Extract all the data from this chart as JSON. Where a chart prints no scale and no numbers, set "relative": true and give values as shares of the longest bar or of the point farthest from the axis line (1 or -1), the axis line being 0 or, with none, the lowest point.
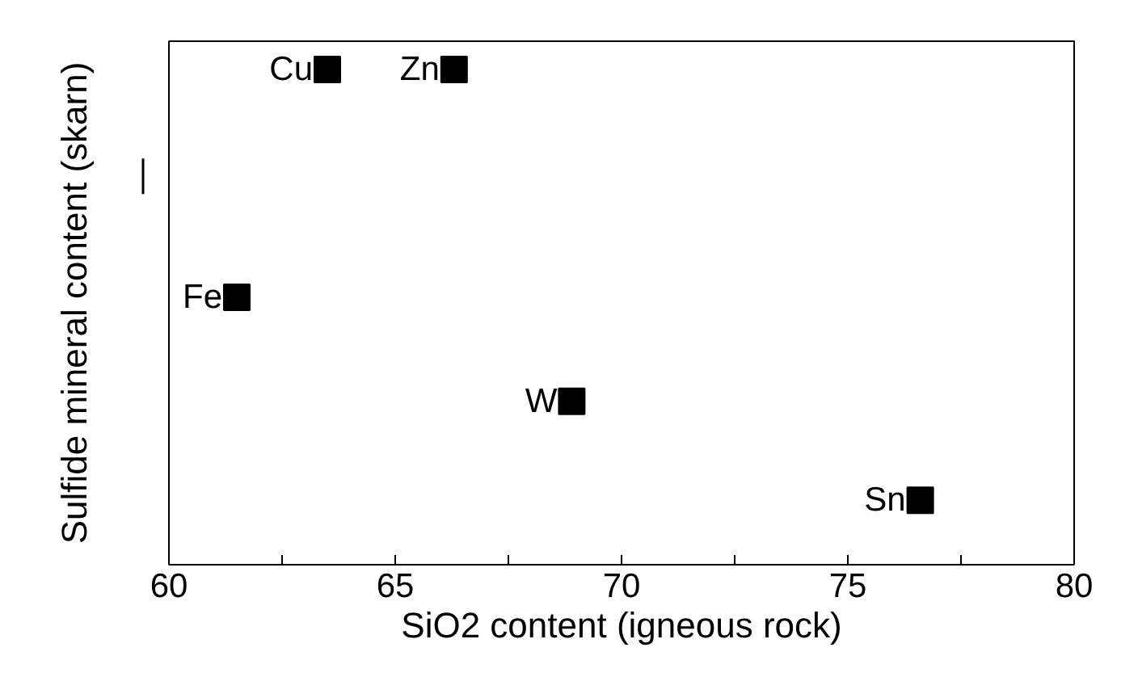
{
  "chart_data": {
    "type": "scatter",
    "xlabel": "SiO2 content (igneous rock)",
    "ylabel": "Sulfide mineral content (skarn)",
    "x": [
      63.5,
      66.3,
      61.5,
      68.9,
      76.6
    ],
    "series": [
      {
        "color": "#000000",
        "values": [
          1,
          1,
          0.54,
          0.33,
          0.13
        ]
      }
    ],
    "relative": true,
    "marker": "square",
    "xlim": [
      60,
      80
    ],
    "xticks": [
      60,
      {
        "value": 62.5,
        "label": null
      },
      65,
      {
        "value": 67.5,
        "label": null
      },
      70,
      {
        "value": 72.5,
        "label": null
      },
      75,
      {
        "value": 77.5,
        "label": null
      },
      80
    ],
    "annotations": [
      {
        "text": "Cu",
        "x": 63.5,
        "y": 1
      },
      {
        "text": "Zn",
        "x": 66.3,
        "y": 1
      },
      {
        "text": "Fe",
        "x": 61.5,
        "y": 0.54
      },
      {
        "text": "W",
        "x": 68.9,
        "y": 0.33
      },
      {
        "text": "Sn",
        "x": 76.6,
        "y": 0.13
      }
    ],
    "grid": false
  }
}
